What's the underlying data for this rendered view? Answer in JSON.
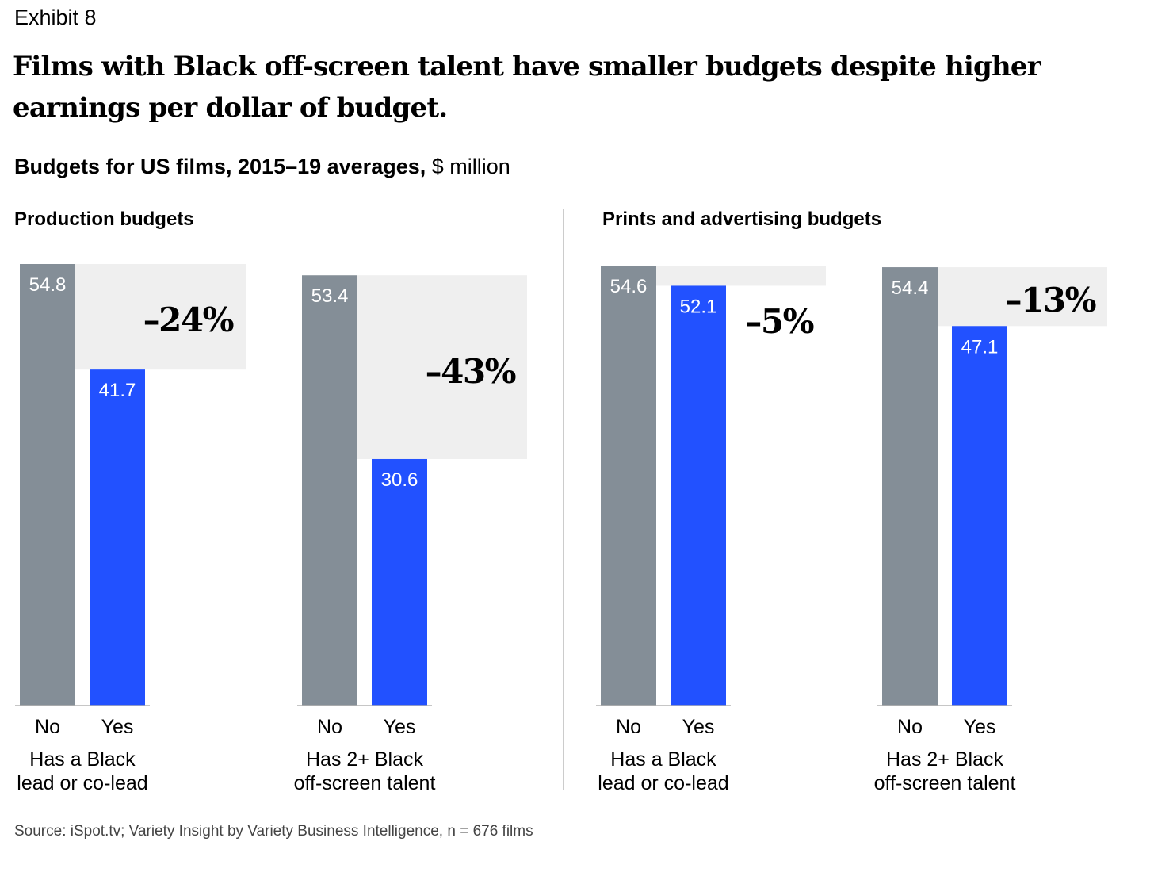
{
  "header": {
    "exhibit": "Exhibit 8",
    "title": "Films with Black off-screen talent have smaller budgets despite higher earnings per dollar of budget.",
    "subtitle_bold": "Budgets for US films, 2015–19 averages,",
    "subtitle_unit": " $ million"
  },
  "sections": [
    {
      "title": "Production budgets"
    },
    {
      "title": "Prints and advertising budgets"
    }
  ],
  "colors": {
    "no": "#848e97",
    "yes": "#2251ff",
    "diff": "#efefef",
    "axis": "#b3b3b3"
  },
  "chart_data": {
    "type": "bar",
    "title": "Budgets for US films, 2015–19 averages, $ million",
    "ylim": [
      0,
      55
    ],
    "grid": false,
    "legend": "none",
    "panels": [
      {
        "section": "Production budgets",
        "group": [
          "Has a Black",
          "lead or co-lead"
        ],
        "categories": [
          "No",
          "Yes"
        ],
        "values": [
          54.8,
          41.7
        ],
        "value_labels": [
          "54.8",
          "41.7"
        ],
        "change": "–24%"
      },
      {
        "section": "Production budgets",
        "group": [
          "Has 2+ Black",
          "off-screen talent"
        ],
        "categories": [
          "No",
          "Yes"
        ],
        "values": [
          53.4,
          30.6
        ],
        "value_labels": [
          "53.4",
          "30.6"
        ],
        "change": "–43%"
      },
      {
        "section": "Prints and advertising budgets",
        "group": [
          "Has a Black",
          "lead or co-lead"
        ],
        "categories": [
          "No",
          "Yes"
        ],
        "values": [
          54.6,
          52.1
        ],
        "value_labels": [
          "54.6",
          "52.1"
        ],
        "change": "–5%"
      },
      {
        "section": "Prints and advertising budgets",
        "group": [
          "Has 2+ Black",
          "off-screen talent"
        ],
        "categories": [
          "No",
          "Yes"
        ],
        "values": [
          54.4,
          47.1
        ],
        "value_labels": [
          "54.4",
          "47.1"
        ],
        "change": "–13%"
      }
    ]
  },
  "source": "Source: iSpot.tv; Variety Insight by Variety Business Intelligence, n = 676 films"
}
